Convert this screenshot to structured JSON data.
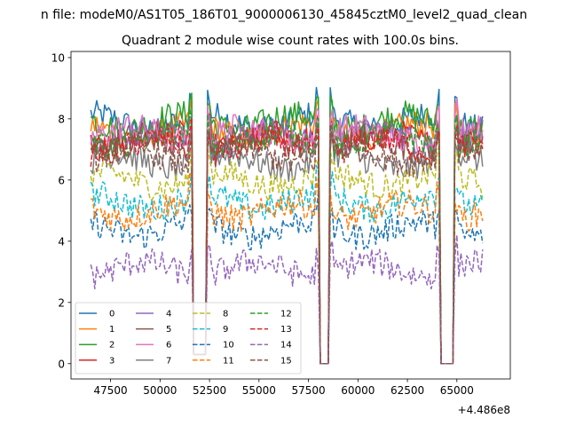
{
  "chart_data": {
    "type": "line",
    "suptitle": "n file: modeM0/AS1T05_186T01_9000006130_45845cztM0_level2_quad_clean",
    "title": "Quadrant 2 module wise count rates with 100.0s bins.",
    "xlabel": "",
    "ylabel": "",
    "offset_text": "+4.486e8",
    "xlim": [
      45500,
      67700
    ],
    "ylim": [
      -0.5,
      10.2
    ],
    "x_ticks": [
      47500,
      50000,
      52500,
      55000,
      57500,
      60000,
      62500,
      65000
    ],
    "x_tick_labels": [
      "47500",
      "50000",
      "52500",
      "55000",
      "57500",
      "60000",
      "62500",
      "65000"
    ],
    "y_ticks": [
      0,
      2,
      4,
      6,
      8,
      10
    ],
    "y_tick_labels": [
      "0",
      "2",
      "4",
      "6",
      "8",
      "10"
    ],
    "grid": false,
    "legend_position": "lower-left",
    "legend_columns": 4,
    "x_range": [
      46500,
      66300
    ],
    "bin_size": 100,
    "gaps": [
      {
        "start": 51700,
        "end": 52300,
        "dip_to": 0.3
      },
      {
        "start": 58100,
        "end": 58500,
        "dip_to": 0
      },
      {
        "start": 64200,
        "end": 64800,
        "dip_to": 0
      }
    ],
    "series": [
      {
        "name": "0",
        "mean": 7.9,
        "color": "#1f77b4",
        "dash": "solid"
      },
      {
        "name": "1",
        "mean": 7.6,
        "color": "#ff7f0e",
        "dash": "solid"
      },
      {
        "name": "2",
        "mean": 7.9,
        "color": "#2ca02c",
        "dash": "solid"
      },
      {
        "name": "3",
        "mean": 7.3,
        "color": "#d62728",
        "dash": "solid"
      },
      {
        "name": "4",
        "mean": 7.4,
        "color": "#9467bd",
        "dash": "solid"
      },
      {
        "name": "5",
        "mean": 7.2,
        "color": "#8c564b",
        "dash": "solid"
      },
      {
        "name": "6",
        "mean": 7.5,
        "color": "#e377c2",
        "dash": "solid"
      },
      {
        "name": "7",
        "mean": 6.6,
        "color": "#7f7f7f",
        "dash": "solid"
      },
      {
        "name": "8",
        "mean": 6.0,
        "color": "#bcbd22",
        "dash": "dashed"
      },
      {
        "name": "9",
        "mean": 5.3,
        "color": "#17becf",
        "dash": "dashed"
      },
      {
        "name": "10",
        "mean": 4.4,
        "color": "#1f77b4",
        "dash": "dashed"
      },
      {
        "name": "11",
        "mean": 5.0,
        "color": "#ff7f0e",
        "dash": "dashed"
      },
      {
        "name": "12",
        "mean": 7.3,
        "color": "#2ca02c",
        "dash": "dashed"
      },
      {
        "name": "13",
        "mean": 7.1,
        "color": "#d62728",
        "dash": "dashed"
      },
      {
        "name": "14",
        "mean": 3.1,
        "color": "#9467bd",
        "dash": "dashed"
      },
      {
        "name": "15",
        "mean": 6.8,
        "color": "#8c564b",
        "dash": "dashed"
      }
    ]
  }
}
